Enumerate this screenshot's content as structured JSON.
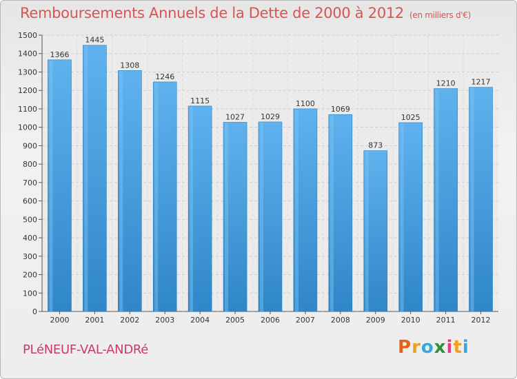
{
  "page": {
    "title": "Remboursements Annuels de la Dette de 2000 à 2012",
    "subtitle": "(en milliers d'€)",
    "town": "PLéNEUF-VAL-ANDRé",
    "logo": {
      "letters": [
        "P",
        "r",
        "o",
        "x",
        "i",
        "t",
        "i"
      ],
      "colors": [
        "#e8611a",
        "#f0a01e",
        "#3aa5dc",
        "#2f8f3a",
        "#e63b8a",
        "#f0a01e",
        "#3aa5dc"
      ]
    }
  },
  "chart_data": {
    "type": "bar",
    "categories": [
      "2000",
      "2001",
      "2002",
      "2003",
      "2004",
      "2005",
      "2006",
      "2007",
      "2008",
      "2009",
      "2010",
      "2011",
      "2012"
    ],
    "values": [
      1366,
      1445,
      1308,
      1246,
      1115,
      1027,
      1029,
      1100,
      1069,
      873,
      1025,
      1210,
      1217
    ],
    "ylim": [
      0,
      1500
    ],
    "yticks": [
      0,
      100,
      200,
      300,
      400,
      500,
      600,
      700,
      800,
      900,
      1000,
      1100,
      1200,
      1300,
      1400,
      1500
    ],
    "grid": true,
    "bar_color": "#4fa3e0"
  }
}
